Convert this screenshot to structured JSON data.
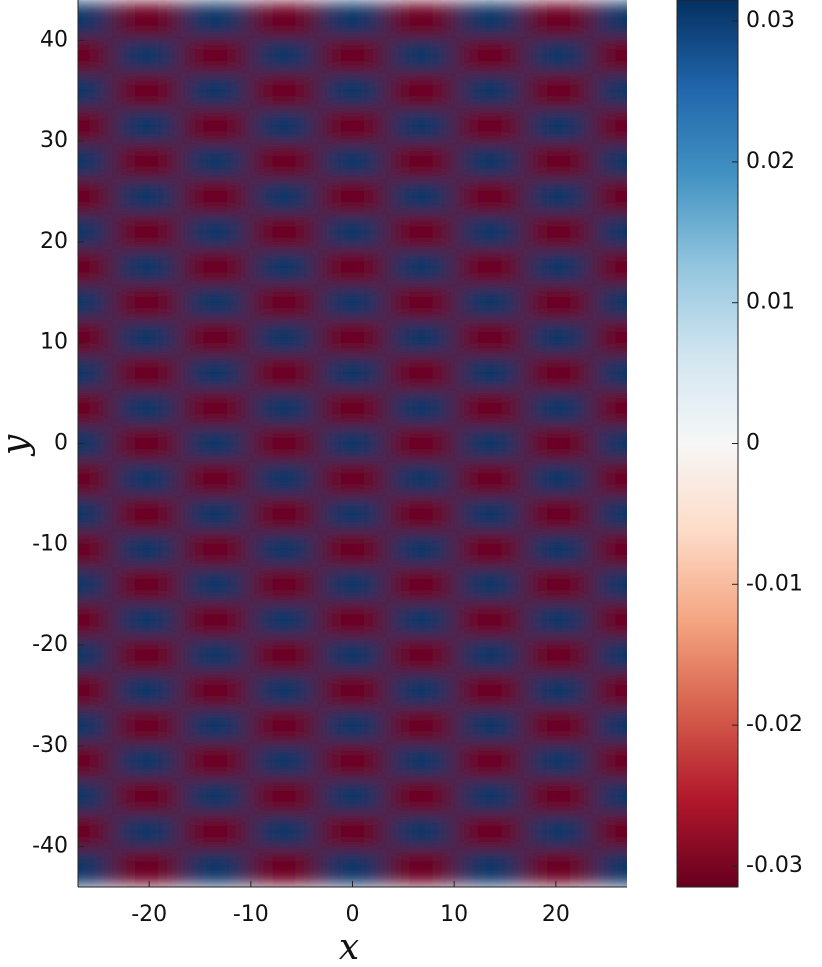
{
  "chart_data": {
    "type": "heatmap",
    "x_label": "x",
    "y_label": "y",
    "x": [
      -27,
      -20.25,
      -13.5,
      -6.75,
      0,
      6.75,
      13.5,
      20.25,
      27
    ],
    "y": [
      42,
      38.5,
      35,
      31.5,
      28,
      24.5,
      21,
      17.5,
      14,
      10.5,
      7,
      3.5,
      0,
      -3.5,
      -7,
      -10.5,
      -14,
      -17.5,
      -21,
      -24.5,
      -28,
      -31.5,
      -35,
      -38.5,
      -42
    ],
    "z": [
      [
        0.031,
        -0.031,
        0.031,
        -0.031,
        0.031,
        -0.031,
        0.031,
        -0.031,
        0.031
      ],
      [
        -0.031,
        0.031,
        -0.031,
        0.031,
        -0.031,
        0.031,
        -0.031,
        0.031,
        -0.031
      ],
      [
        0.031,
        -0.031,
        0.031,
        -0.031,
        0.031,
        -0.031,
        0.031,
        -0.031,
        0.031
      ],
      [
        -0.031,
        0.031,
        -0.031,
        0.031,
        -0.031,
        0.031,
        -0.031,
        0.031,
        -0.031
      ],
      [
        0.031,
        -0.031,
        0.031,
        -0.031,
        0.031,
        -0.031,
        0.031,
        -0.031,
        0.031
      ],
      [
        -0.031,
        0.031,
        -0.031,
        0.031,
        -0.031,
        0.031,
        -0.031,
        0.031,
        -0.031
      ],
      [
        0.031,
        -0.031,
        0.031,
        -0.031,
        0.031,
        -0.031,
        0.031,
        -0.031,
        0.031
      ],
      [
        -0.031,
        0.031,
        -0.031,
        0.031,
        -0.031,
        0.031,
        -0.031,
        0.031,
        -0.031
      ],
      [
        0.031,
        -0.031,
        0.031,
        -0.031,
        0.031,
        -0.031,
        0.031,
        -0.031,
        0.031
      ],
      [
        -0.031,
        0.031,
        -0.031,
        0.031,
        -0.031,
        0.031,
        -0.031,
        0.031,
        -0.031
      ],
      [
        0.031,
        -0.031,
        0.031,
        -0.031,
        0.031,
        -0.031,
        0.031,
        -0.031,
        0.031
      ],
      [
        -0.031,
        0.031,
        -0.031,
        0.031,
        -0.031,
        0.031,
        -0.031,
        0.031,
        -0.031
      ],
      [
        0.031,
        -0.031,
        0.031,
        -0.031,
        0.031,
        -0.031,
        0.031,
        -0.031,
        0.031
      ],
      [
        -0.031,
        0.031,
        -0.031,
        0.031,
        -0.031,
        0.031,
        -0.031,
        0.031,
        -0.031
      ],
      [
        0.031,
        -0.031,
        0.031,
        -0.031,
        0.031,
        -0.031,
        0.031,
        -0.031,
        0.031
      ],
      [
        -0.031,
        0.031,
        -0.031,
        0.031,
        -0.031,
        0.031,
        -0.031,
        0.031,
        -0.031
      ],
      [
        0.031,
        -0.031,
        0.031,
        -0.031,
        0.031,
        -0.031,
        0.031,
        -0.031,
        0.031
      ],
      [
        -0.031,
        0.031,
        -0.031,
        0.031,
        -0.031,
        0.031,
        -0.031,
        0.031,
        -0.031
      ],
      [
        0.031,
        -0.031,
        0.031,
        -0.031,
        0.031,
        -0.031,
        0.031,
        -0.031,
        0.031
      ],
      [
        -0.031,
        0.031,
        -0.031,
        0.031,
        -0.031,
        0.031,
        -0.031,
        0.031,
        -0.031
      ],
      [
        0.031,
        -0.031,
        0.031,
        -0.031,
        0.031,
        -0.031,
        0.031,
        -0.031,
        0.031
      ],
      [
        -0.031,
        0.031,
        -0.031,
        0.031,
        -0.031,
        0.031,
        -0.031,
        0.031,
        -0.031
      ],
      [
        0.031,
        -0.031,
        0.031,
        -0.031,
        0.031,
        -0.031,
        0.031,
        -0.031,
        0.031
      ],
      [
        -0.031,
        0.031,
        -0.031,
        0.031,
        -0.031,
        0.031,
        -0.031,
        0.031,
        -0.031
      ],
      [
        0.031,
        -0.031,
        0.031,
        -0.031,
        0.031,
        -0.031,
        0.031,
        -0.031,
        0.031
      ]
    ],
    "xlim": [
      -27,
      27
    ],
    "ylim": [
      -44,
      44
    ],
    "xticks": [
      -20,
      -10,
      0,
      10,
      20
    ],
    "yticks": [
      -40,
      -30,
      -20,
      -10,
      0,
      10,
      20,
      30,
      40
    ],
    "zlim": [
      -0.0315,
      0.0315
    ],
    "colorbar_ticks": [
      -0.03,
      -0.02,
      -0.01,
      0,
      0.01,
      0.02,
      0.03
    ],
    "colormap": [
      "#67001f",
      "#b2182b",
      "#d6604d",
      "#f4a582",
      "#fddbc7",
      "#f7f7f7",
      "#d1e5f0",
      "#92c5de",
      "#4393c3",
      "#2166ac",
      "#053061"
    ]
  }
}
